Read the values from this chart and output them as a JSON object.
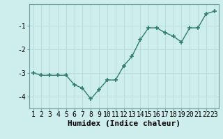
{
  "x": [
    1,
    2,
    3,
    4,
    5,
    6,
    7,
    8,
    9,
    10,
    11,
    12,
    13,
    14,
    15,
    16,
    17,
    18,
    19,
    20,
    21,
    22,
    23
  ],
  "y": [
    -3.0,
    -3.1,
    -3.1,
    -3.1,
    -3.1,
    -3.5,
    -3.65,
    -4.1,
    -3.7,
    -3.3,
    -3.3,
    -2.7,
    -2.3,
    -1.6,
    -1.1,
    -1.1,
    -1.3,
    -1.45,
    -1.7,
    -1.1,
    -1.1,
    -0.5,
    -0.4
  ],
  "line_color": "#2e7d6e",
  "marker_color": "#2e7d6e",
  "bg_color": "#ceeeed",
  "grid_color": "#b8dcda",
  "spine_color": "#6e9e9a",
  "xlabel": "Humidex (Indice chaleur)",
  "xlim": [
    0.5,
    23.5
  ],
  "ylim": [
    -4.5,
    -0.1
  ],
  "yticks": [
    -4,
    -3,
    -2,
    -1
  ],
  "xticks": [
    1,
    2,
    3,
    4,
    5,
    6,
    7,
    8,
    9,
    10,
    11,
    12,
    13,
    14,
    15,
    16,
    17,
    18,
    19,
    20,
    21,
    22,
    23
  ],
  "xlabel_fontsize": 8,
  "tick_fontsize": 7,
  "marker_size": 4,
  "line_width": 1.0
}
